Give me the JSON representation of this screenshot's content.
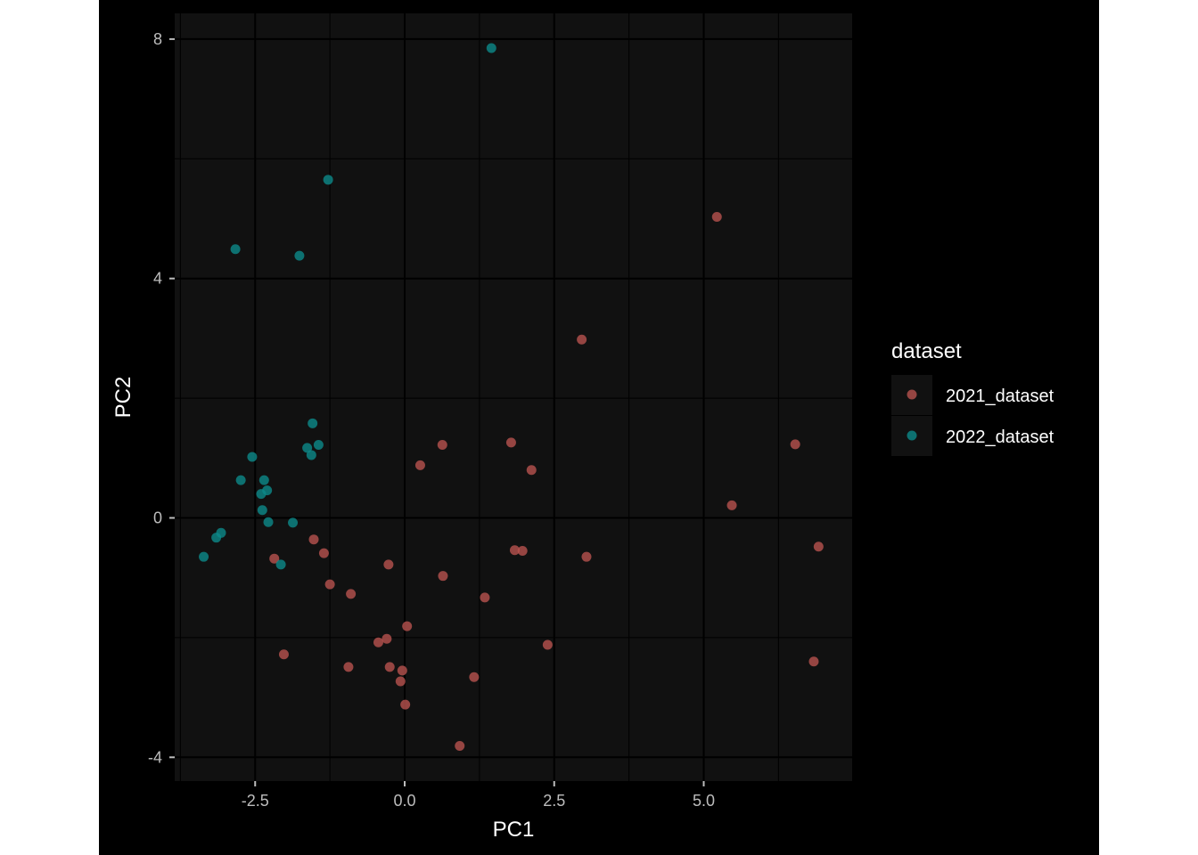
{
  "chart_data": {
    "type": "scatter",
    "xlabel": "PC1",
    "ylabel": "PC2",
    "xlim": [
      -3.8,
      7.5
    ],
    "ylim": [
      -4.4,
      8.4
    ],
    "x_ticks": [
      -2.5,
      0.0,
      2.5,
      5.0
    ],
    "x_tick_labels": [
      "-2.5",
      "0.0",
      "2.5",
      "5.0"
    ],
    "y_ticks": [
      -4,
      0,
      4,
      8
    ],
    "y_tick_labels": [
      "-4",
      "0",
      "4",
      "8"
    ],
    "grid": true,
    "legend": {
      "title": "dataset",
      "position": "right"
    },
    "colors": {
      "page_background": "#000000",
      "panel_background": "#111111",
      "grid_major": "#000000",
      "grid_minor": "#000000"
    },
    "series": [
      {
        "name": "2021_dataset",
        "color": "#b8534f",
        "points": [
          [
            5.22,
            5.03
          ],
          [
            2.96,
            2.98
          ],
          [
            6.53,
            1.23
          ],
          [
            5.47,
            0.21
          ],
          [
            6.92,
            -0.48
          ],
          [
            6.84,
            -2.4
          ],
          [
            0.63,
            1.22
          ],
          [
            1.78,
            1.26
          ],
          [
            0.26,
            0.88
          ],
          [
            2.12,
            0.8
          ],
          [
            1.84,
            -0.54
          ],
          [
            1.97,
            -0.55
          ],
          [
            3.04,
            -0.65
          ],
          [
            -1.52,
            -0.36
          ],
          [
            -1.35,
            -0.59
          ],
          [
            -2.18,
            -0.68
          ],
          [
            -0.27,
            -0.78
          ],
          [
            0.64,
            -0.97
          ],
          [
            -1.25,
            -1.11
          ],
          [
            -0.9,
            -1.27
          ],
          [
            1.34,
            -1.33
          ],
          [
            0.04,
            -1.81
          ],
          [
            -0.44,
            -2.08
          ],
          [
            -0.3,
            -2.02
          ],
          [
            2.39,
            -2.12
          ],
          [
            -2.02,
            -2.28
          ],
          [
            -0.94,
            -2.49
          ],
          [
            -0.25,
            -2.49
          ],
          [
            -0.04,
            -2.55
          ],
          [
            -0.07,
            -2.73
          ],
          [
            1.16,
            -2.66
          ],
          [
            0.01,
            -3.12
          ],
          [
            0.92,
            -3.81
          ]
        ]
      },
      {
        "name": "2022_dataset",
        "color": "#0c8a8a",
        "points": [
          [
            1.45,
            7.85
          ],
          [
            -1.28,
            5.65
          ],
          [
            -2.83,
            4.49
          ],
          [
            -1.76,
            4.38
          ],
          [
            -1.54,
            1.58
          ],
          [
            -1.63,
            1.17
          ],
          [
            -1.44,
            1.22
          ],
          [
            -1.56,
            1.05
          ],
          [
            -2.55,
            1.02
          ],
          [
            -2.74,
            0.63
          ],
          [
            -2.35,
            0.63
          ],
          [
            -2.3,
            0.46
          ],
          [
            -2.4,
            0.4
          ],
          [
            -2.38,
            0.13
          ],
          [
            -2.28,
            -0.07
          ],
          [
            -1.87,
            -0.08
          ],
          [
            -3.07,
            -0.25
          ],
          [
            -3.15,
            -0.33
          ],
          [
            -3.36,
            -0.65
          ],
          [
            -2.07,
            -0.78
          ]
        ]
      }
    ]
  }
}
